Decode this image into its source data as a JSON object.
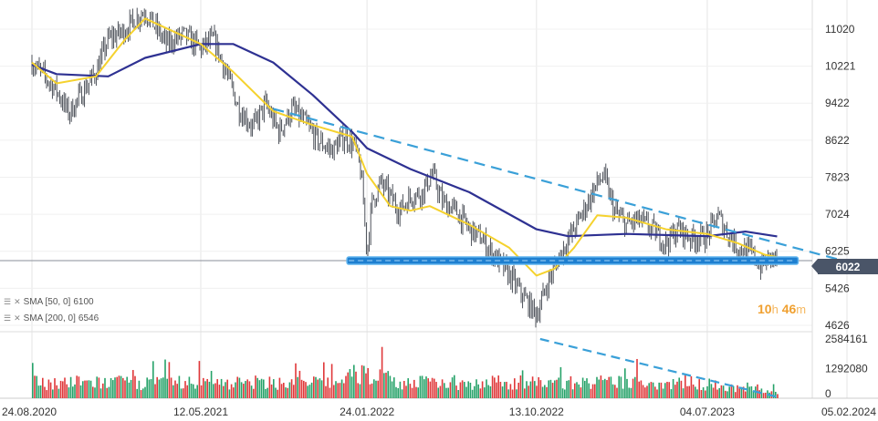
{
  "chart_data": {
    "type": "line",
    "symbol_panel": "price",
    "x_ticks": [
      "24.08.2020",
      "12.05.2021",
      "24.01.2022",
      "13.10.2022",
      "04.07.2023",
      "05.02.2024"
    ],
    "y_ticks": [
      "11020",
      "10221",
      "9422",
      "8622",
      "7823",
      "7024",
      "6225",
      "5426",
      "4626"
    ],
    "ylim": [
      4626,
      11400
    ],
    "last_price": "6022",
    "indicators": [
      {
        "label": "SMA [50, 0]",
        "value": "6100",
        "color": "#f5d22e"
      },
      {
        "label": "SMA [200, 0]",
        "value": "6546",
        "color": "#2e3192"
      }
    ],
    "price_series": [
      [
        "24.08.2020",
        10300
      ],
      [
        "01.10.2020",
        9700
      ],
      [
        "20.10.2020",
        9200
      ],
      [
        "01.12.2020",
        10100
      ],
      [
        "20.12.2020",
        10800
      ],
      [
        "15.01.2021",
        11000
      ],
      [
        "01.02.2021",
        11250
      ],
      [
        "15.02.2021",
        11400
      ],
      [
        "01.03.2021",
        11100
      ],
      [
        "20.03.2021",
        10700
      ],
      [
        "15.04.2021",
        10900
      ],
      [
        "12.05.2021",
        10600
      ],
      [
        "01.06.2021",
        10800
      ],
      [
        "20.06.2021",
        10100
      ],
      [
        "10.07.2021",
        9300
      ],
      [
        "01.08.2021",
        8900
      ],
      [
        "20.08.2021",
        9400
      ],
      [
        "10.09.2021",
        8800
      ],
      [
        "01.10.2021",
        9300
      ],
      [
        "20.10.2021",
        9000
      ],
      [
        "10.11.2021",
        8600
      ],
      [
        "01.12.2021",
        8400
      ],
      [
        "20.12.2021",
        8700
      ],
      [
        "05.01.2022",
        8500
      ],
      [
        "15.01.2022",
        7900
      ],
      [
        "24.01.2022",
        6200
      ],
      [
        "01.02.2022",
        7300
      ],
      [
        "15.02.2022",
        7700
      ],
      [
        "01.03.2022",
        7400
      ],
      [
        "15.03.2022",
        7100
      ],
      [
        "01.04.2022",
        7400
      ],
      [
        "20.04.2022",
        7500
      ],
      [
        "05.05.2022",
        7900
      ],
      [
        "20.05.2022",
        7300
      ],
      [
        "10.06.2022",
        7100
      ],
      [
        "01.07.2022",
        6700
      ],
      [
        "20.07.2022",
        6500
      ],
      [
        "10.08.2022",
        6100
      ],
      [
        "01.09.2022",
        5700
      ],
      [
        "20.09.2022",
        5300
      ],
      [
        "13.10.2022",
        4850
      ],
      [
        "01.11.2022",
        5600
      ],
      [
        "20.11.2022",
        6200
      ],
      [
        "10.12.2022",
        6700
      ],
      [
        "01.01.2023",
        7300
      ],
      [
        "15.01.2023",
        7700
      ],
      [
        "25.01.2023",
        7850
      ],
      [
        "10.02.2023",
        7100
      ],
      [
        "01.03.2023",
        6800
      ],
      [
        "20.03.2023",
        6900
      ],
      [
        "10.04.2023",
        6700
      ],
      [
        "01.05.2023",
        6400
      ],
      [
        "20.05.2023",
        6700
      ],
      [
        "10.06.2023",
        6500
      ],
      [
        "04.07.2023",
        6550
      ],
      [
        "20.07.2023",
        7000
      ],
      [
        "05.08.2023",
        6600
      ],
      [
        "20.08.2023",
        6300
      ],
      [
        "10.09.2023",
        6200
      ],
      [
        "25.09.2023",
        5900
      ],
      [
        "10.10.2023",
        6100
      ],
      [
        "20.10.2023",
        6022
      ]
    ],
    "sma50_series": [
      [
        "24.08.2020",
        10300
      ],
      [
        "01.10.2020",
        9850
      ],
      [
        "01.12.2020",
        10000
      ],
      [
        "15.01.2021",
        10800
      ],
      [
        "15.02.2021",
        11250
      ],
      [
        "12.05.2021",
        10700
      ],
      [
        "01.07.2021",
        10100
      ],
      [
        "01.09.2021",
        9250
      ],
      [
        "01.11.2021",
        8950
      ],
      [
        "01.01.2022",
        8700
      ],
      [
        "24.01.2022",
        7900
      ],
      [
        "01.03.2022",
        7200
      ],
      [
        "01.04.2022",
        7100
      ],
      [
        "01.05.2022",
        7200
      ],
      [
        "01.07.2022",
        6800
      ],
      [
        "01.09.2022",
        6300
      ],
      [
        "13.10.2022",
        5700
      ],
      [
        "10.11.2022",
        5850
      ],
      [
        "10.12.2022",
        6300
      ],
      [
        "15.01.2023",
        7000
      ],
      [
        "01.03.2023",
        6950
      ],
      [
        "01.05.2023",
        6700
      ],
      [
        "04.07.2023",
        6600
      ],
      [
        "20.08.2023",
        6400
      ],
      [
        "01.10.2023",
        6150
      ],
      [
        "20.10.2023",
        6100
      ]
    ],
    "sma200_series": [
      [
        "24.08.2020",
        10250
      ],
      [
        "01.10.2020",
        10050
      ],
      [
        "20.12.2020",
        10000
      ],
      [
        "15.02.2021",
        10400
      ],
      [
        "12.05.2021",
        10700
      ],
      [
        "01.07.2021",
        10700
      ],
      [
        "01.09.2021",
        10300
      ],
      [
        "01.11.2021",
        9600
      ],
      [
        "01.01.2022",
        8800
      ],
      [
        "24.01.2022",
        8450
      ],
      [
        "01.04.2022",
        8000
      ],
      [
        "01.07.2022",
        7500
      ],
      [
        "13.10.2022",
        6700
      ],
      [
        "01.12.2022",
        6550
      ],
      [
        "01.03.2023",
        6600
      ],
      [
        "04.07.2023",
        6550
      ],
      [
        "01.09.2023",
        6650
      ],
      [
        "20.10.2023",
        6546
      ]
    ],
    "trendline_price": [
      [
        "01.09.2021",
        9300
      ],
      [
        "05.02.2024",
        6000
      ]
    ],
    "support_level": 6022,
    "volume_ticks": [
      "2584161",
      "1292080",
      "0"
    ],
    "volume_trendline": [
      [
        0,
        2584161
      ],
      [
        1,
        0
      ]
    ],
    "countdown": {
      "hours": "10",
      "hours_unit": "h",
      "minutes": "46",
      "minutes_unit": "m"
    }
  },
  "price_tag": "6022"
}
